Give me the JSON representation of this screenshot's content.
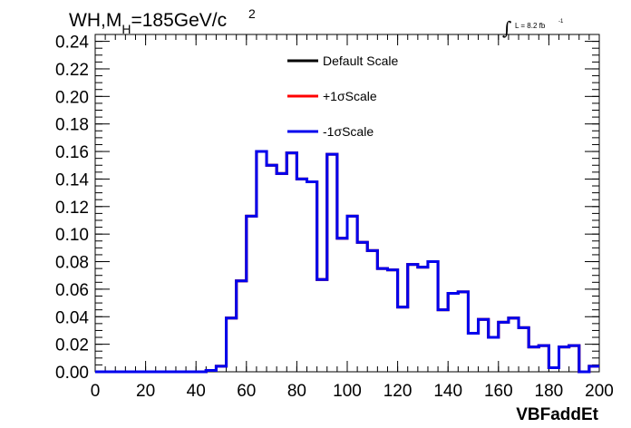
{
  "chart_data": {
    "type": "line",
    "title_main": "WH,M",
    "title_sub": "H",
    "title_rest": "=185GeV/c",
    "title_sup": "2",
    "lumi_text": "L = 8.2 fb",
    "lumi_sup": "-1",
    "xlabel": "VBFaddEt",
    "ylabel": "",
    "xlim": [
      0,
      200
    ],
    "ylim": [
      0,
      0.245
    ],
    "x_tick_labels": [
      "0",
      "20",
      "40",
      "60",
      "80",
      "100",
      "120",
      "140",
      "160",
      "180",
      "200"
    ],
    "y_tick_labels": [
      "0.00",
      "0.02",
      "0.04",
      "0.06",
      "0.08",
      "0.10",
      "0.12",
      "0.14",
      "0.16",
      "0.18",
      "0.20",
      "0.22",
      "0.24"
    ],
    "bin_edges": [
      0,
      4,
      8,
      12,
      16,
      20,
      24,
      28,
      32,
      36,
      40,
      44,
      48,
      52,
      56,
      60,
      64,
      68,
      72,
      76,
      80,
      84,
      88,
      92,
      96,
      100,
      104,
      108,
      112,
      116,
      120,
      124,
      128,
      132,
      136,
      140,
      144,
      148,
      152,
      156,
      160,
      164,
      168,
      172,
      176,
      180,
      184,
      188,
      192,
      196,
      200
    ],
    "series": [
      {
        "name": "Default Scale",
        "color": "#000000",
        "values": [
          0,
          0,
          0,
          0,
          0,
          0,
          0,
          0,
          0,
          0,
          0,
          0.001,
          0.004,
          0.039,
          0.066,
          0.113,
          0.16,
          0.15,
          0.144,
          0.159,
          0.14,
          0.138,
          0.067,
          0.158,
          0.097,
          0.113,
          0.094,
          0.088,
          0.075,
          0.074,
          0.047,
          0.078,
          0.076,
          0.08,
          0.045,
          0.057,
          0.058,
          0.028,
          0.038,
          0.025,
          0.036,
          0.039,
          0.032,
          0.018,
          0.019,
          0.003,
          0.018,
          0.019,
          0.0,
          0.004
        ]
      },
      {
        "name": "+1σScale",
        "color": "#ff0000",
        "values": [
          0,
          0,
          0,
          0,
          0,
          0,
          0,
          0,
          0,
          0,
          0,
          0.001,
          0.004,
          0.039,
          0.066,
          0.113,
          0.16,
          0.15,
          0.144,
          0.159,
          0.14,
          0.138,
          0.067,
          0.158,
          0.097,
          0.113,
          0.094,
          0.088,
          0.075,
          0.074,
          0.047,
          0.078,
          0.076,
          0.08,
          0.045,
          0.057,
          0.058,
          0.028,
          0.038,
          0.025,
          0.036,
          0.039,
          0.032,
          0.018,
          0.019,
          0.003,
          0.018,
          0.019,
          0.0,
          0.004
        ]
      },
      {
        "name": "-1σScale",
        "color": "#0000ee",
        "values": [
          0,
          0,
          0,
          0,
          0,
          0,
          0,
          0,
          0,
          0,
          0,
          0.001,
          0.004,
          0.039,
          0.066,
          0.113,
          0.16,
          0.15,
          0.144,
          0.159,
          0.14,
          0.138,
          0.067,
          0.158,
          0.097,
          0.113,
          0.094,
          0.088,
          0.075,
          0.074,
          0.047,
          0.078,
          0.076,
          0.08,
          0.045,
          0.057,
          0.058,
          0.028,
          0.038,
          0.025,
          0.036,
          0.039,
          0.032,
          0.018,
          0.019,
          0.003,
          0.018,
          0.019,
          0.0,
          0.004
        ]
      }
    ],
    "legend_position": "top-center",
    "grid": false
  }
}
